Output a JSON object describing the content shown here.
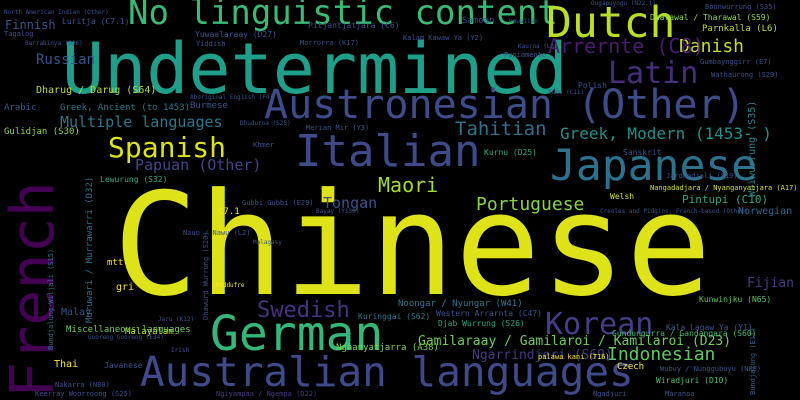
{
  "words": [
    {
      "text": "Chinese",
      "color": "#dde318"
    },
    {
      "text": "French",
      "color": "#440154"
    },
    {
      "text": "Undetermined",
      "color": "#1f9e89"
    },
    {
      "text": "No linguistic content",
      "color": "#3aba76"
    },
    {
      "text": "Dutch",
      "color": "#b8de29"
    },
    {
      "text": "Austronesian (Other)",
      "color": "#3e4c8a"
    },
    {
      "text": "Italian",
      "color": "#3e4a89"
    },
    {
      "text": "Japanese",
      "color": "#2d718e"
    },
    {
      "text": "German",
      "color": "#35b779"
    },
    {
      "text": "Australian languages",
      "color": "#3e4a89"
    },
    {
      "text": "Korean",
      "color": "#433e85"
    },
    {
      "text": "Spanish",
      "color": "#dde318"
    },
    {
      "text": "Swedish",
      "color": "#46327e"
    },
    {
      "text": "Latin",
      "color": "#472d7b"
    },
    {
      "text": "Danish",
      "color": "#c2df23"
    },
    {
      "text": "Arrernte (C8)",
      "color": "#481c6e"
    },
    {
      "text": "Maori",
      "color": "#a5db36"
    },
    {
      "text": "Portuguese",
      "color": "#86d549"
    },
    {
      "text": "Tahitian",
      "color": "#2c728e"
    },
    {
      "text": "Greek, Modern (1453- )",
      "color": "#21918c"
    },
    {
      "text": "Russian",
      "color": "#3b528b"
    },
    {
      "text": "Indonesian",
      "color": "#5ec962"
    },
    {
      "text": "Papuan (Other)",
      "color": "#404688"
    },
    {
      "text": "Multiple languages",
      "color": "#2a788e"
    },
    {
      "text": "Tongan",
      "color": "#3b528b"
    },
    {
      "text": "Fijian",
      "color": "#433e85"
    },
    {
      "text": "Gamilaraay / Gamilaroi / Kamilaroi (D23)",
      "color": "#6ece58"
    },
    {
      "text": "Ngarrindjeri (S69)",
      "color": "#443a83"
    },
    {
      "text": "Pintupi (C10)",
      "color": "#25ab82"
    },
    {
      "text": "Norwegian",
      "color": "#31688e"
    },
    {
      "text": "Woiwurrung (S35)",
      "color": "#24868e"
    },
    {
      "text": "Finnish",
      "color": "#3b528b"
    },
    {
      "text": "Dharug / Darug (S64)",
      "color": "#b5de2b"
    },
    {
      "text": "Greek, Ancient (to 1453)",
      "color": "#2a788e"
    },
    {
      "text": "Burmese",
      "color": "#39568c"
    },
    {
      "text": "Arabic",
      "color": "#39568c"
    },
    {
      "text": "Gulidjan (S30)",
      "color": "#90d743"
    },
    {
      "text": "Malay",
      "color": "#3b528b"
    },
    {
      "text": "Thai",
      "color": "#fde725"
    },
    {
      "text": "Malayalam",
      "color": "#c0df25"
    },
    {
      "text": "Miscellaneous languages",
      "color": "#6ece58"
    },
    {
      "text": "Javanese",
      "color": "#3b528b"
    },
    {
      "text": "Czech",
      "color": "#fde725"
    },
    {
      "text": "Samoan",
      "color": "#3e4a89"
    },
    {
      "text": "Parnkalla (L6)",
      "color": "#b8de29"
    },
    {
      "text": "Sanskrit",
      "color": "#3b528b"
    },
    {
      "text": "Khmer",
      "color": "#3b528b"
    },
    {
      "text": "Welsh",
      "color": "#d2e21b"
    },
    {
      "text": "Kurnu (D25)",
      "color": "#27ad81"
    },
    {
      "text": "Lewurung (S32)",
      "color": "#2ab07f"
    },
    {
      "text": "Gubbi Gubbi (E29)",
      "color": "#3b528b"
    },
    {
      "text": "Muruwari / Murrawarri (D32)",
      "color": "#2c728e"
    },
    {
      "text": "Bundjalung (E17)",
      "color": "#33638d"
    },
    {
      "text": "Pitjantjatjara (C6)",
      "color": "#3b528b"
    },
    {
      "text": "Yuwaalaraay (D27)",
      "color": "#3b528b"
    },
    {
      "text": "Luritja (C7.1)",
      "color": "#3b528b"
    },
    {
      "text": "Kala Lagaw Ya (Y1)",
      "color": "#3b528b"
    },
    {
      "text": "Kunwinjku (N65)",
      "color": "#5ec962"
    },
    {
      "text": "Gundungurra / Gandangara (S60)",
      "color": "#3dbc74"
    },
    {
      "text": "Noongar / Nyungar (W41)",
      "color": "#2a788e"
    },
    {
      "text": "Western Arrarnta (C47)",
      "color": "#3b528b"
    },
    {
      "text": "Djab Wurrung (S26)",
      "color": "#22a884"
    },
    {
      "text": "Ngaanyatjarra (A38)",
      "color": "#7ad151"
    },
    {
      "text": "Kuringgai (S62)",
      "color": "#2a788e"
    },
    {
      "text": "Nakarra (N80)",
      "color": "#3b528b"
    },
    {
      "text": "Keerray Woorroong (S25)",
      "color": "#3b528b"
    },
    {
      "text": "Ngiyampaa / Ngempa (D22)",
      "color": "#443983"
    },
    {
      "text": "Wiradjuri (D10)",
      "color": "#46c06f"
    },
    {
      "text": "Ngadjuri",
      "color": "#3b528b"
    },
    {
      "text": "Maranoa",
      "color": "#3b528b"
    },
    {
      "text": "Dharawal / Tharawal (S59)",
      "color": "#8fd744"
    },
    {
      "text": "Boonwurrung (S35)",
      "color": "#3b528b"
    },
    {
      "text": "Wathaurong (S29)",
      "color": "#3b528b"
    },
    {
      "text": "Gumbaynggirr (E7)",
      "color": "#3b528b"
    },
    {
      "text": "Jardwadjali (S19)",
      "color": "#3b528b"
    },
    {
      "text": "Nangadadjara / Nyanganyatjara (A17)",
      "color": "#d8e219"
    },
    {
      "text": "palawa kani (T16)",
      "color": "#fde725"
    },
    {
      "text": "Kalam Kawaw Ya (Y2)",
      "color": "#3b528b"
    },
    {
      "text": "Morrorra (K17)",
      "color": "#3b528b"
    },
    {
      "text": "Tagalog",
      "color": "#3b528b"
    },
    {
      "text": "Yiddish",
      "color": "#3b528b"
    },
    {
      "text": "Hawaiian",
      "color": "#3b528b"
    },
    {
      "text": "Papiamento",
      "color": "#3b528b"
    },
    {
      "text": "Kaurna (L3)",
      "color": "#3b528b"
    },
    {
      "text": "Gugapuyngu (N22.1)",
      "color": "#3b528b"
    },
    {
      "text": "Polish",
      "color": "#3b528b"
    },
    {
      "text": "Yumu (C11)",
      "color": "#3b528b"
    },
    {
      "text": "Bundjalung-Wiljali (S15)",
      "color": "#2c728e"
    },
    {
      "text": "Dhuduroa (S25)",
      "color": "#3b528b"
    },
    {
      "text": "Nauo / Nawu (L2)",
      "color": "#3b528b"
    },
    {
      "text": "Malagasy",
      "color": "#3b528b"
    },
    {
      "text": "Dhawurd Wurrung (S20)",
      "color": "#3b528b"
    },
    {
      "text": "Creoles and Pidgins, French-based (Other)",
      "color": "#3b528b"
    },
    {
      "text": "Wubuy / Nunggubuyu (N88)",
      "color": "#3b528b"
    },
    {
      "text": "Bayay (Y130)",
      "color": "#3b528b"
    },
    {
      "text": "Merian Mir (Y3)",
      "color": "#3b528b"
    },
    {
      "text": "North American Indian (Other)",
      "color": "#3b528b"
    },
    {
      "text": "Barrabinya (D26)",
      "color": "#3b528b"
    },
    {
      "text": "Irish",
      "color": "#3b528b"
    },
    {
      "text": "Jaru (K12)",
      "color": "#3b528b"
    },
    {
      "text": "Gooreng Gooreng (E34)",
      "color": "#3b528b"
    },
    {
      "text": "mtt",
      "color": "#fde725"
    },
    {
      "text": "gri",
      "color": "#fde725"
    },
    {
      "text": "C7.1",
      "color": "#fde725"
    },
    {
      "text": "chiddufre",
      "color": "#fde725"
    },
    {
      "text": "Aboriginal English (P4)",
      "color": "#3b528b"
    }
  ]
}
